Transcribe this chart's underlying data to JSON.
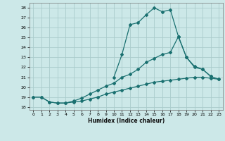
{
  "xlabel": "Humidex (Indice chaleur)",
  "bg_color": "#cce8e8",
  "grid_color": "#aacccc",
  "line_color": "#1a7070",
  "xlim": [
    -0.5,
    23.5
  ],
  "ylim": [
    17.7,
    28.5
  ],
  "xticks": [
    0,
    1,
    2,
    3,
    4,
    5,
    6,
    7,
    8,
    9,
    10,
    11,
    12,
    13,
    14,
    15,
    16,
    17,
    18,
    19,
    20,
    21,
    22,
    23
  ],
  "yticks": [
    18,
    19,
    20,
    21,
    22,
    23,
    24,
    25,
    26,
    27,
    28
  ],
  "curve1_x": [
    0,
    1,
    2,
    3,
    4,
    5,
    6,
    7,
    8,
    9,
    10,
    11,
    12,
    13,
    14,
    15,
    16,
    17,
    18,
    19,
    20,
    21,
    22,
    23
  ],
  "curve1_y": [
    19.0,
    19.0,
    18.5,
    18.4,
    18.4,
    18.5,
    18.6,
    18.8,
    19.0,
    19.3,
    19.5,
    19.7,
    19.9,
    20.1,
    20.3,
    20.5,
    20.6,
    20.7,
    20.8,
    20.9,
    21.0,
    21.0,
    20.9,
    20.8
  ],
  "curve2_x": [
    0,
    1,
    2,
    3,
    4,
    5,
    6,
    7,
    8,
    9,
    10,
    11,
    12,
    13,
    14,
    15,
    16,
    17,
    18,
    19,
    20,
    21,
    22
  ],
  "curve2_y": [
    19.0,
    19.0,
    18.5,
    18.4,
    18.4,
    18.6,
    18.9,
    19.3,
    19.7,
    20.1,
    20.4,
    21.0,
    21.3,
    21.8,
    22.5,
    22.9,
    23.3,
    23.5,
    25.1,
    23.0,
    22.0,
    21.8,
    21.1
  ],
  "curve3_x": [
    10,
    11,
    12,
    13,
    14,
    15,
    16,
    17,
    18,
    19,
    20,
    21,
    22,
    23
  ],
  "curve3_y": [
    21.0,
    23.3,
    26.3,
    26.5,
    27.3,
    28.0,
    27.6,
    27.8,
    25.1,
    23.0,
    22.1,
    21.8,
    21.1,
    20.8
  ]
}
